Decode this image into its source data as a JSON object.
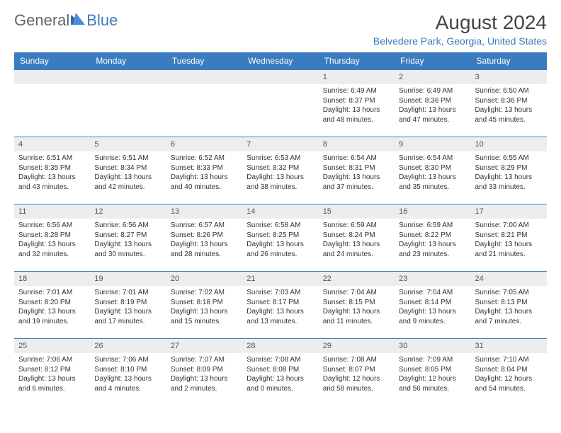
{
  "logo": {
    "general": "General",
    "blue": "Blue"
  },
  "title": "August 2024",
  "location": "Belvedere Park, Georgia, United States",
  "colors": {
    "header_bg": "#3b7bbf",
    "header_fg": "#ffffff",
    "band_bg": "#ededed",
    "rule": "#3b7bbf",
    "text": "#333333",
    "accent": "#3b7bbf"
  },
  "weekdays": [
    "Sunday",
    "Monday",
    "Tuesday",
    "Wednesday",
    "Thursday",
    "Friday",
    "Saturday"
  ],
  "weeks": [
    [
      null,
      null,
      null,
      null,
      {
        "n": "1",
        "sr": "Sunrise: 6:49 AM",
        "ss": "Sunset: 8:37 PM",
        "d1": "Daylight: 13 hours",
        "d2": "and 48 minutes."
      },
      {
        "n": "2",
        "sr": "Sunrise: 6:49 AM",
        "ss": "Sunset: 8:36 PM",
        "d1": "Daylight: 13 hours",
        "d2": "and 47 minutes."
      },
      {
        "n": "3",
        "sr": "Sunrise: 6:50 AM",
        "ss": "Sunset: 8:36 PM",
        "d1": "Daylight: 13 hours",
        "d2": "and 45 minutes."
      }
    ],
    [
      {
        "n": "4",
        "sr": "Sunrise: 6:51 AM",
        "ss": "Sunset: 8:35 PM",
        "d1": "Daylight: 13 hours",
        "d2": "and 43 minutes."
      },
      {
        "n": "5",
        "sr": "Sunrise: 6:51 AM",
        "ss": "Sunset: 8:34 PM",
        "d1": "Daylight: 13 hours",
        "d2": "and 42 minutes."
      },
      {
        "n": "6",
        "sr": "Sunrise: 6:52 AM",
        "ss": "Sunset: 8:33 PM",
        "d1": "Daylight: 13 hours",
        "d2": "and 40 minutes."
      },
      {
        "n": "7",
        "sr": "Sunrise: 6:53 AM",
        "ss": "Sunset: 8:32 PM",
        "d1": "Daylight: 13 hours",
        "d2": "and 38 minutes."
      },
      {
        "n": "8",
        "sr": "Sunrise: 6:54 AM",
        "ss": "Sunset: 8:31 PM",
        "d1": "Daylight: 13 hours",
        "d2": "and 37 minutes."
      },
      {
        "n": "9",
        "sr": "Sunrise: 6:54 AM",
        "ss": "Sunset: 8:30 PM",
        "d1": "Daylight: 13 hours",
        "d2": "and 35 minutes."
      },
      {
        "n": "10",
        "sr": "Sunrise: 6:55 AM",
        "ss": "Sunset: 8:29 PM",
        "d1": "Daylight: 13 hours",
        "d2": "and 33 minutes."
      }
    ],
    [
      {
        "n": "11",
        "sr": "Sunrise: 6:56 AM",
        "ss": "Sunset: 8:28 PM",
        "d1": "Daylight: 13 hours",
        "d2": "and 32 minutes."
      },
      {
        "n": "12",
        "sr": "Sunrise: 6:56 AM",
        "ss": "Sunset: 8:27 PM",
        "d1": "Daylight: 13 hours",
        "d2": "and 30 minutes."
      },
      {
        "n": "13",
        "sr": "Sunrise: 6:57 AM",
        "ss": "Sunset: 8:26 PM",
        "d1": "Daylight: 13 hours",
        "d2": "and 28 minutes."
      },
      {
        "n": "14",
        "sr": "Sunrise: 6:58 AM",
        "ss": "Sunset: 8:25 PM",
        "d1": "Daylight: 13 hours",
        "d2": "and 26 minutes."
      },
      {
        "n": "15",
        "sr": "Sunrise: 6:59 AM",
        "ss": "Sunset: 8:24 PM",
        "d1": "Daylight: 13 hours",
        "d2": "and 24 minutes."
      },
      {
        "n": "16",
        "sr": "Sunrise: 6:59 AM",
        "ss": "Sunset: 8:22 PM",
        "d1": "Daylight: 13 hours",
        "d2": "and 23 minutes."
      },
      {
        "n": "17",
        "sr": "Sunrise: 7:00 AM",
        "ss": "Sunset: 8:21 PM",
        "d1": "Daylight: 13 hours",
        "d2": "and 21 minutes."
      }
    ],
    [
      {
        "n": "18",
        "sr": "Sunrise: 7:01 AM",
        "ss": "Sunset: 8:20 PM",
        "d1": "Daylight: 13 hours",
        "d2": "and 19 minutes."
      },
      {
        "n": "19",
        "sr": "Sunrise: 7:01 AM",
        "ss": "Sunset: 8:19 PM",
        "d1": "Daylight: 13 hours",
        "d2": "and 17 minutes."
      },
      {
        "n": "20",
        "sr": "Sunrise: 7:02 AM",
        "ss": "Sunset: 8:18 PM",
        "d1": "Daylight: 13 hours",
        "d2": "and 15 minutes."
      },
      {
        "n": "21",
        "sr": "Sunrise: 7:03 AM",
        "ss": "Sunset: 8:17 PM",
        "d1": "Daylight: 13 hours",
        "d2": "and 13 minutes."
      },
      {
        "n": "22",
        "sr": "Sunrise: 7:04 AM",
        "ss": "Sunset: 8:15 PM",
        "d1": "Daylight: 13 hours",
        "d2": "and 11 minutes."
      },
      {
        "n": "23",
        "sr": "Sunrise: 7:04 AM",
        "ss": "Sunset: 8:14 PM",
        "d1": "Daylight: 13 hours",
        "d2": "and 9 minutes."
      },
      {
        "n": "24",
        "sr": "Sunrise: 7:05 AM",
        "ss": "Sunset: 8:13 PM",
        "d1": "Daylight: 13 hours",
        "d2": "and 7 minutes."
      }
    ],
    [
      {
        "n": "25",
        "sr": "Sunrise: 7:06 AM",
        "ss": "Sunset: 8:12 PM",
        "d1": "Daylight: 13 hours",
        "d2": "and 6 minutes."
      },
      {
        "n": "26",
        "sr": "Sunrise: 7:06 AM",
        "ss": "Sunset: 8:10 PM",
        "d1": "Daylight: 13 hours",
        "d2": "and 4 minutes."
      },
      {
        "n": "27",
        "sr": "Sunrise: 7:07 AM",
        "ss": "Sunset: 8:09 PM",
        "d1": "Daylight: 13 hours",
        "d2": "and 2 minutes."
      },
      {
        "n": "28",
        "sr": "Sunrise: 7:08 AM",
        "ss": "Sunset: 8:08 PM",
        "d1": "Daylight: 13 hours",
        "d2": "and 0 minutes."
      },
      {
        "n": "29",
        "sr": "Sunrise: 7:08 AM",
        "ss": "Sunset: 8:07 PM",
        "d1": "Daylight: 12 hours",
        "d2": "and 58 minutes."
      },
      {
        "n": "30",
        "sr": "Sunrise: 7:09 AM",
        "ss": "Sunset: 8:05 PM",
        "d1": "Daylight: 12 hours",
        "d2": "and 56 minutes."
      },
      {
        "n": "31",
        "sr": "Sunrise: 7:10 AM",
        "ss": "Sunset: 8:04 PM",
        "d1": "Daylight: 12 hours",
        "d2": "and 54 minutes."
      }
    ]
  ]
}
